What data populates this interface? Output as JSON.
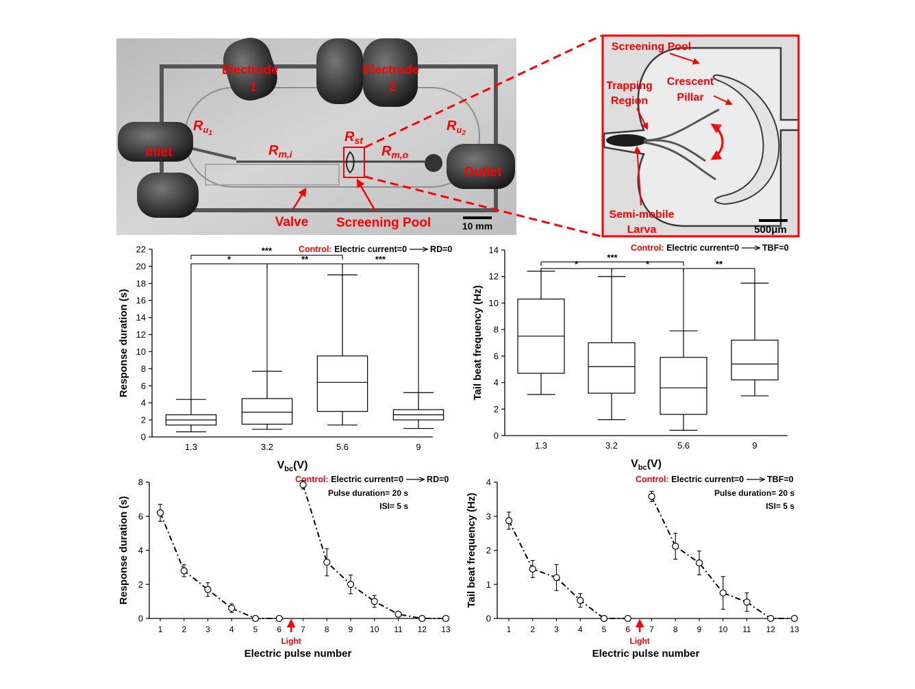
{
  "photo_left": {
    "labels": {
      "electrode1": [
        "Electrode",
        "1"
      ],
      "electrode2": [
        "Electrode",
        "2"
      ],
      "inlet": "Inlet",
      "outlet": "Outlet",
      "valve": "Valve",
      "screening_pool": "Screening Pool",
      "scale": "10 mm",
      "ru1": "R",
      "ru1_sub": "u",
      "ru1_subsub": "1",
      "ru2": "R",
      "ru2_sub": "u",
      "ru2_subsub": "2",
      "rmi": "R",
      "rmi_sub": "m,i",
      "rmo": "R",
      "rmo_sub": "m,o",
      "rst": "R",
      "rst_sub": "st"
    }
  },
  "photo_right": {
    "labels": {
      "screening_pool": "Screening Pool",
      "trapping": [
        "Trapping",
        "Region"
      ],
      "crescent": [
        "Crescent",
        "Pillar"
      ],
      "semi_mobile": [
        "Semi-mobile",
        "Larva"
      ],
      "scale": "500μm"
    }
  },
  "colors": {
    "accent_red": "#ff0000",
    "ink": "#000000"
  },
  "chart_data": [
    {
      "type": "box",
      "panel": "response_duration_box",
      "control_label": "Control:",
      "control_text": "Electric current=0",
      "control_result": "RD=0",
      "xlabel": "V",
      "xlabel_sub": "bc",
      "xlabel_unit": "(V)",
      "ylabel": "Response duration (s)",
      "ylim": [
        0,
        22
      ],
      "yticks": [
        "0",
        "2",
        "4",
        "6",
        "8",
        "10",
        "12",
        "14",
        "16",
        "18",
        "20",
        "22"
      ],
      "categories": [
        "1.3",
        "3.2",
        "5.6",
        "9"
      ],
      "boxes": [
        {
          "min": 0.6,
          "q1": 1.4,
          "median": 2.0,
          "q3": 2.6,
          "max": 4.4
        },
        {
          "min": 0.9,
          "q1": 1.5,
          "median": 2.9,
          "q3": 4.5,
          "max": 7.7
        },
        {
          "min": 1.4,
          "q1": 3.0,
          "median": 6.4,
          "q3": 9.5,
          "max": 19.0
        },
        {
          "min": 1.0,
          "q1": 2.0,
          "median": 2.6,
          "q3": 3.2,
          "max": 5.2
        }
      ],
      "sig_brackets": [
        {
          "from": 0,
          "to": 2,
          "label": "***",
          "level": 21.3
        },
        {
          "from": 0,
          "to": 1,
          "label": "*",
          "level": 20.3
        },
        {
          "from": 1,
          "to": 2,
          "label": "**",
          "level": 20.3
        },
        {
          "from": 2,
          "to": 3,
          "label": "***",
          "level": 20.3
        }
      ]
    },
    {
      "type": "box",
      "panel": "tail_beat_box",
      "control_label": "Control:",
      "control_text": "Electric current=0",
      "control_result": "TBF=0",
      "xlabel": "V",
      "xlabel_sub": "bc",
      "xlabel_unit": "(V)",
      "ylabel": "Tail beat frequency (Hz)",
      "ylim": [
        0,
        14
      ],
      "yticks": [
        "0",
        "2",
        "4",
        "6",
        "8",
        "10",
        "12",
        "14"
      ],
      "categories": [
        "1.3",
        "3.2",
        "5.6",
        "9"
      ],
      "boxes": [
        {
          "min": 3.1,
          "q1": 4.7,
          "median": 7.5,
          "q3": 10.3,
          "max": 12.4
        },
        {
          "min": 1.2,
          "q1": 3.2,
          "median": 5.2,
          "q3": 7.0,
          "max": 12.0
        },
        {
          "min": 0.4,
          "q1": 1.6,
          "median": 3.6,
          "q3": 5.9,
          "max": 7.9
        },
        {
          "min": 3.0,
          "q1": 4.2,
          "median": 5.4,
          "q3": 7.2,
          "max": 11.5
        }
      ],
      "sig_brackets": [
        {
          "from": 0,
          "to": 2,
          "label": "***",
          "level": 13.1
        },
        {
          "from": 0,
          "to": 1,
          "label": "*",
          "level": 12.6
        },
        {
          "from": 1,
          "to": 2,
          "label": "*",
          "level": 12.6
        },
        {
          "from": 2,
          "to": 3,
          "label": "**",
          "level": 12.6
        }
      ]
    },
    {
      "type": "line",
      "panel": "response_duration_pulses",
      "control_label": "Control:",
      "control_text": "Electric current=0",
      "control_result": "RD=0",
      "notes": [
        "Pulse duration= 20 s",
        "ISI= 5 s"
      ],
      "xlabel": "Electric pulse number",
      "ylabel": "Response duration (s)",
      "ylim": [
        0,
        8
      ],
      "yticks": [
        "0",
        "2",
        "4",
        "6",
        "8"
      ],
      "xticks": [
        "1",
        "2",
        "3",
        "4",
        "5",
        "6",
        "7",
        "8",
        "9",
        "10",
        "11",
        "12",
        "13"
      ],
      "light_label": "Light",
      "light_x": 6.5,
      "series": [
        {
          "x": [
            1,
            2,
            3,
            4,
            5,
            6
          ],
          "y": [
            6.2,
            2.8,
            1.7,
            0.6,
            0,
            0
          ],
          "err": [
            0.5,
            0.35,
            0.4,
            0.25,
            0,
            0
          ]
        },
        {
          "x": [
            7,
            8,
            9,
            10,
            11,
            12,
            13
          ],
          "y": [
            7.85,
            3.3,
            2.0,
            1.0,
            0.25,
            0,
            0
          ],
          "err": [
            0.25,
            0.8,
            0.55,
            0.35,
            0.15,
            0,
            0
          ]
        }
      ]
    },
    {
      "type": "line",
      "panel": "tail_beat_pulses",
      "control_label": "Control:",
      "control_text": "Electric current=0",
      "control_result": "TBF=0",
      "notes": [
        "Pulse duration= 20 s",
        "ISI= 5 s"
      ],
      "xlabel": "Electric pulse number",
      "ylabel": "Tail beat frequency (Hz)",
      "ylim": [
        0,
        4
      ],
      "yticks": [
        "0",
        "1",
        "2",
        "3",
        "4"
      ],
      "xticks": [
        "1",
        "2",
        "3",
        "4",
        "5",
        "6",
        "7",
        "8",
        "9",
        "10",
        "11",
        "12",
        "13"
      ],
      "light_label": "Light",
      "light_x": 6.5,
      "series": [
        {
          "x": [
            1,
            2,
            3,
            4,
            5,
            6
          ],
          "y": [
            2.87,
            1.45,
            1.2,
            0.53,
            0,
            0
          ],
          "err": [
            0.25,
            0.25,
            0.38,
            0.2,
            0,
            0
          ]
        },
        {
          "x": [
            7,
            8,
            9,
            10,
            11,
            12,
            13
          ],
          "y": [
            3.58,
            2.12,
            1.63,
            0.75,
            0.48,
            0,
            0
          ],
          "err": [
            0.15,
            0.38,
            0.35,
            0.48,
            0.27,
            0,
            0
          ]
        }
      ]
    }
  ]
}
